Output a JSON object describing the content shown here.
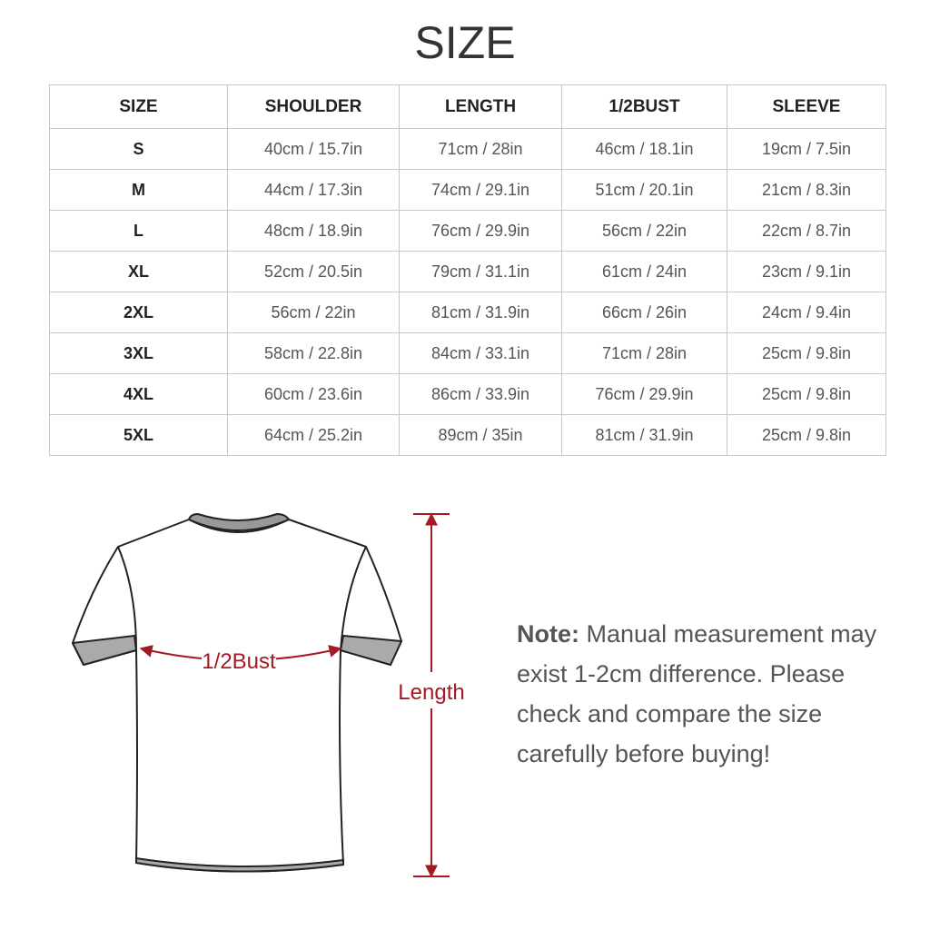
{
  "header": {
    "title": "SIZE"
  },
  "table": {
    "headers": [
      "SIZE",
      "SHOULDER",
      "LENGTH",
      "1/2BUST",
      "SLEEVE"
    ],
    "rows": [
      [
        "S",
        "40cm / 15.7in",
        "71cm / 28in",
        "46cm / 18.1in",
        "19cm / 7.5in"
      ],
      [
        "M",
        "44cm / 17.3in",
        "74cm / 29.1in",
        "51cm / 20.1in",
        "21cm / 8.3in"
      ],
      [
        "L",
        "48cm / 18.9in",
        "76cm / 29.9in",
        "56cm / 22in",
        "22cm / 8.7in"
      ],
      [
        "XL",
        "52cm / 20.5in",
        "79cm / 31.1in",
        "61cm / 24in",
        "23cm / 9.1in"
      ],
      [
        "2XL",
        "56cm / 22in",
        "81cm / 31.9in",
        "66cm / 26in",
        "24cm / 9.4in"
      ],
      [
        "3XL",
        "58cm / 22.8in",
        "84cm / 33.1in",
        "71cm / 28in",
        "25cm / 9.8in"
      ],
      [
        "4XL",
        "60cm / 23.6in",
        "86cm / 33.9in",
        "76cm / 29.9in",
        "25cm / 9.8in"
      ],
      [
        "5XL",
        "64cm / 25.2in",
        "89cm / 35in",
        "81cm / 31.9in",
        "25cm / 9.8in"
      ]
    ]
  },
  "diagram": {
    "bust_label": "1/2Bust",
    "length_label": "Length"
  },
  "note": {
    "label": "Note:",
    "text": "Manual measurement may exist 1-2cm difference. Please check and compare the size carefully before buying!"
  }
}
